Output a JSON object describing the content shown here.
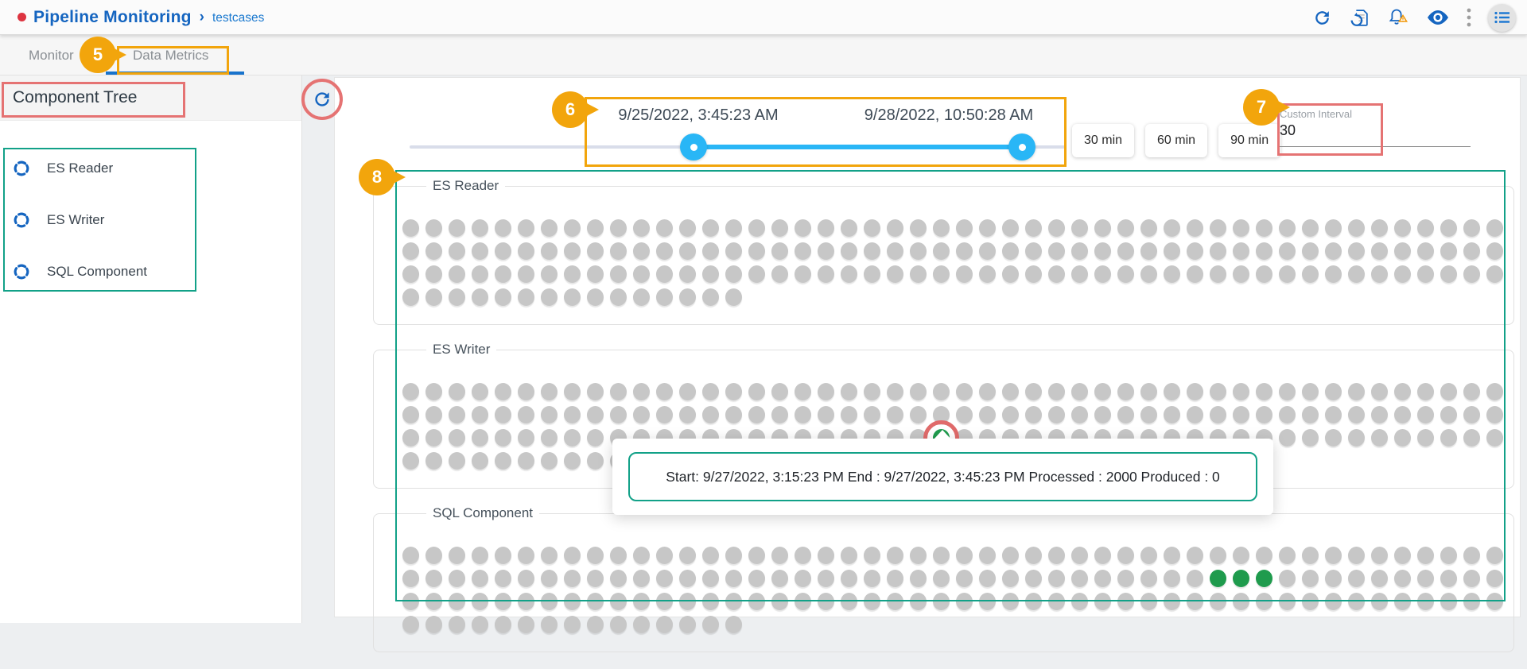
{
  "header": {
    "app_title": "Pipeline Monitoring",
    "separator": "›",
    "breadcrumb": "testcases"
  },
  "tabs": [
    {
      "label": "Monitor",
      "active": false
    },
    {
      "label": "Data Metrics",
      "active": true
    }
  ],
  "sidebar": {
    "title": "Component Tree",
    "items": [
      {
        "label": "ES Reader"
      },
      {
        "label": "ES Writer"
      },
      {
        "label": "SQL Component"
      }
    ]
  },
  "time_slider": {
    "start_label": "9/25/2022, 3:45:23 AM",
    "end_label": "9/28/2022, 10:50:28 AM"
  },
  "interval_buttons": [
    {
      "label": "30 min"
    },
    {
      "label": "60 min"
    },
    {
      "label": "90 min"
    }
  ],
  "custom_interval": {
    "label": "Custom Interval",
    "value": "30"
  },
  "metrics": {
    "sections": [
      {
        "label": "ES Reader",
        "rows": [
          {
            "count": 48
          },
          {
            "count": 48
          },
          {
            "count": 48
          },
          {
            "count": 15
          }
        ]
      },
      {
        "label": "ES Writer",
        "rows": [
          {
            "count": 48
          },
          {
            "count": 48
          },
          {
            "count": 48,
            "green": [
              23
            ],
            "ring": [
              23
            ]
          },
          {
            "count": 15
          }
        ]
      },
      {
        "label": "SQL Component",
        "rows": [
          {
            "count": 48
          },
          {
            "count": 48,
            "green": [
              35,
              36,
              37
            ]
          },
          {
            "count": 48
          },
          {
            "count": 15
          }
        ]
      }
    ]
  },
  "tooltip": {
    "text": "Start: 9/27/2022, 3:15:23 PM End : 9/27/2022, 3:45:23 PM Processed : 2000 Produced : 0"
  },
  "annotations": {
    "tab_callout": "5",
    "slider_callout": "6",
    "custom_interval_callout": "7",
    "metrics_callout": "8"
  },
  "colors": {
    "annotation_orange": "#F2A50C",
    "annotation_pink": "#E57373",
    "annotation_teal": "#12A188",
    "accent_blue": "#1565C0",
    "slider_active": "#29B6F6",
    "dot_gray": "#C7C7C7",
    "dot_green": "#1F9B4D"
  }
}
